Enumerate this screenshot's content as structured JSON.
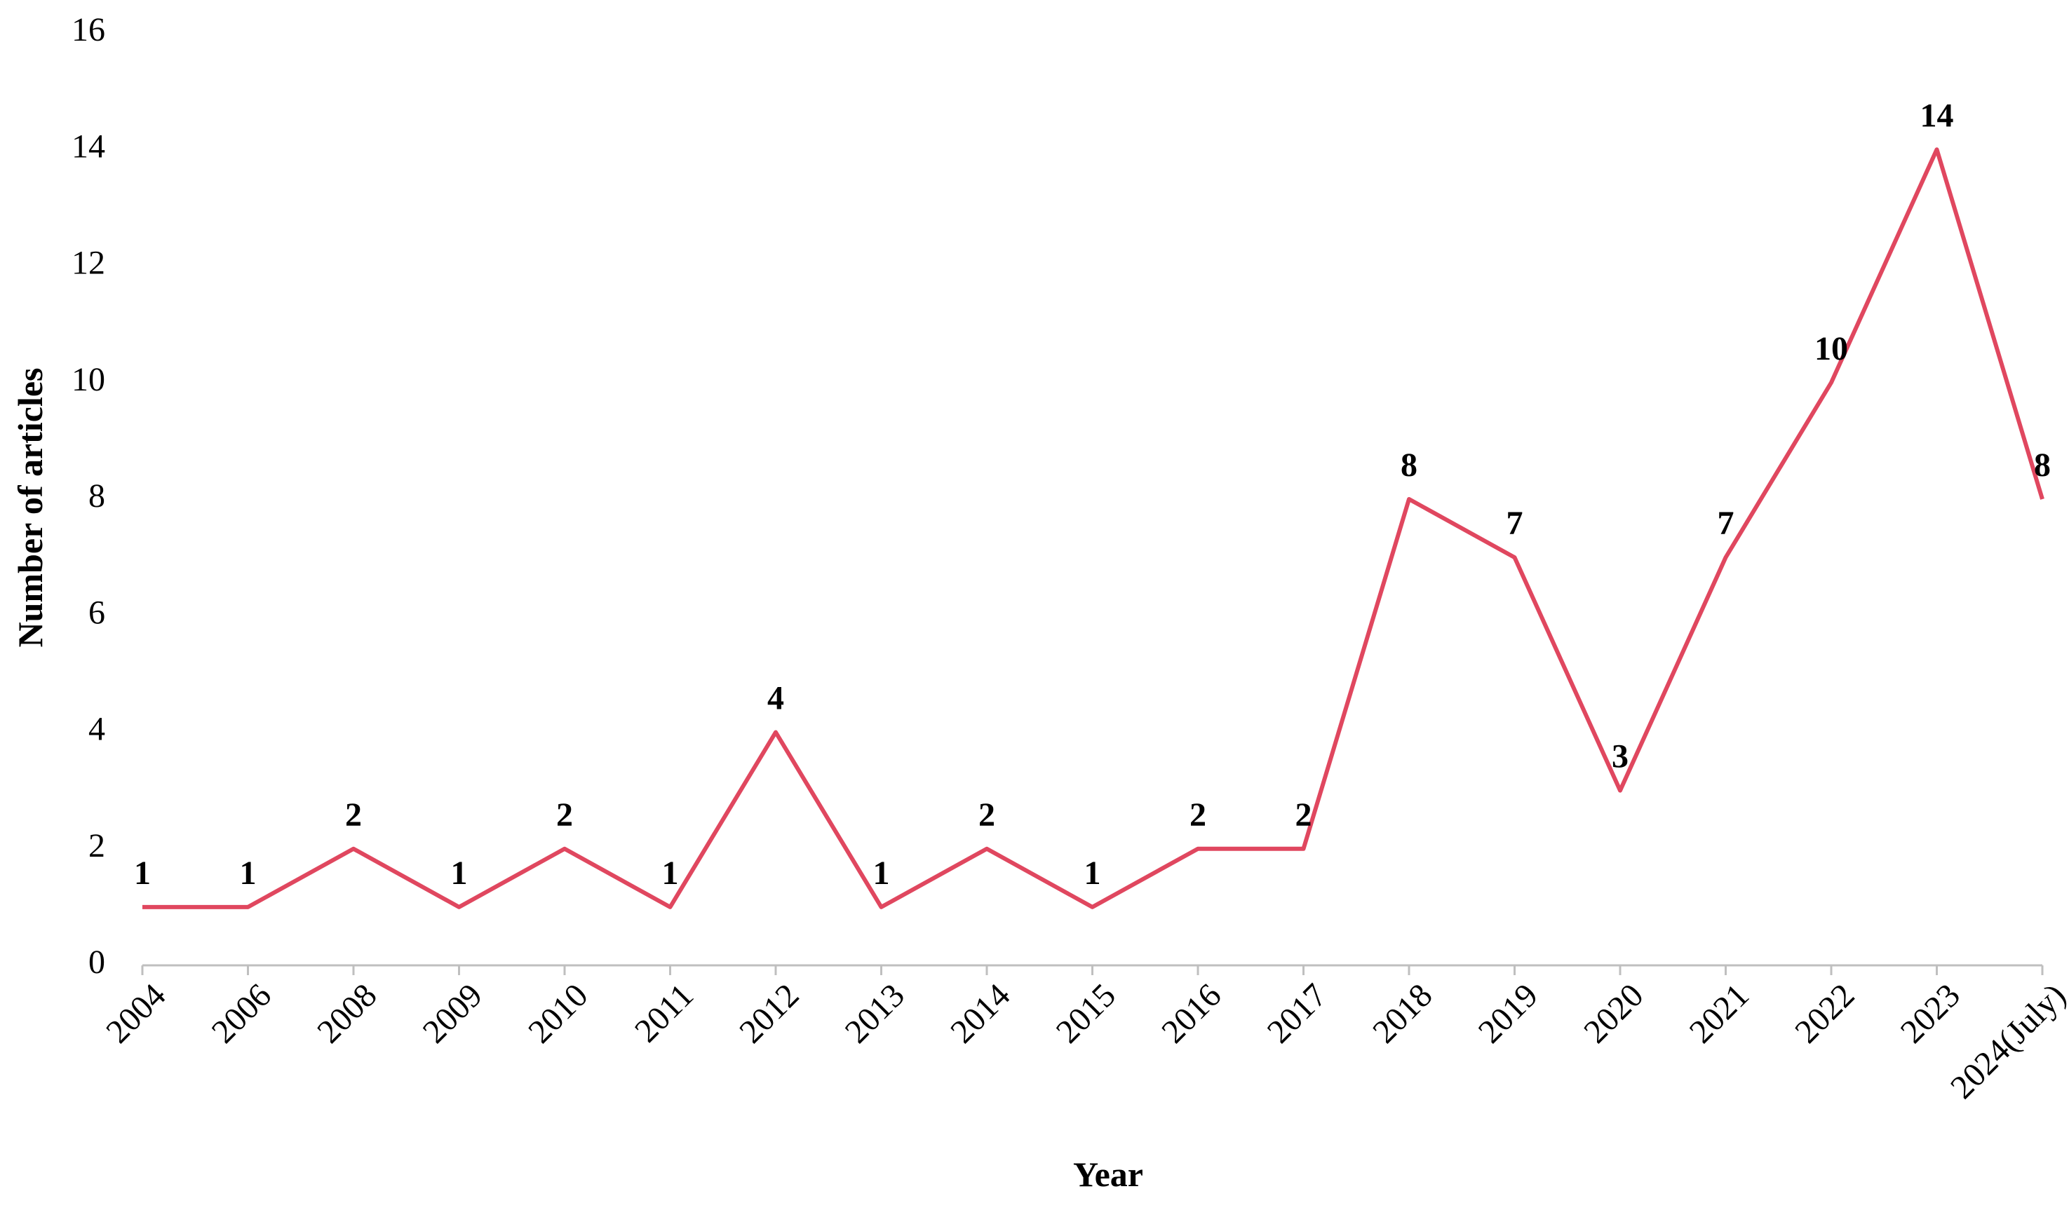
{
  "chart_data": {
    "type": "line",
    "x_label": "Year",
    "y_label": "Number of articles",
    "categories": [
      "2004",
      "2006",
      "2008",
      "2009",
      "2010",
      "2011",
      "2012",
      "2013",
      "2014",
      "2015",
      "2016",
      "2017",
      "2018",
      "2019",
      "2020",
      "2021",
      "2022",
      "2023",
      "2024(July)"
    ],
    "series": [
      {
        "name": "Number of articles",
        "color": "#e0475f",
        "values": [
          1,
          1,
          2,
          1,
          2,
          1,
          4,
          1,
          2,
          1,
          2,
          2,
          8,
          7,
          3,
          7,
          10,
          14,
          8
        ]
      }
    ],
    "ylim": [
      0,
      16
    ],
    "yticks": [
      0,
      2,
      4,
      6,
      8,
      10,
      12,
      14,
      16
    ],
    "grid": false,
    "data_labels": true
  }
}
